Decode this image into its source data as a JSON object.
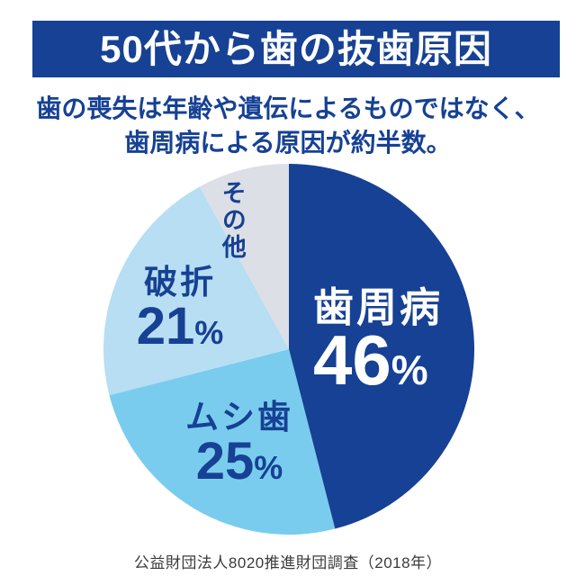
{
  "header": {
    "title": "50代から歯の抜歯原因",
    "bg_color": "#164194",
    "text_color": "#ffffff"
  },
  "subtitle": {
    "line1": "歯の喪失は年齢や遺伝によるものではなく、",
    "line2": "歯周病による原因が約半数。",
    "color": "#164194"
  },
  "chart_data": {
    "type": "pie",
    "title": "50代から歯の抜歯原因",
    "start_angle_deg": 0,
    "direction": "clockwise",
    "percent_sign": "%",
    "slices": [
      {
        "label": "歯周病",
        "value": 46,
        "show_percent": true,
        "color": "#164194",
        "label_color": "#ffffff"
      },
      {
        "label": "ムシ歯",
        "value": 25,
        "show_percent": true,
        "color": "#7accee",
        "label_color": "#164194"
      },
      {
        "label": "破折",
        "value": 21,
        "show_percent": true,
        "color": "#b7def2",
        "label_color": "#164194"
      },
      {
        "label": "その他",
        "value": 8,
        "show_percent": false,
        "color": "#dcdfe5",
        "label_color": "#164194"
      }
    ],
    "source": "公益財団法人8020推進財団調査（2018年）"
  }
}
